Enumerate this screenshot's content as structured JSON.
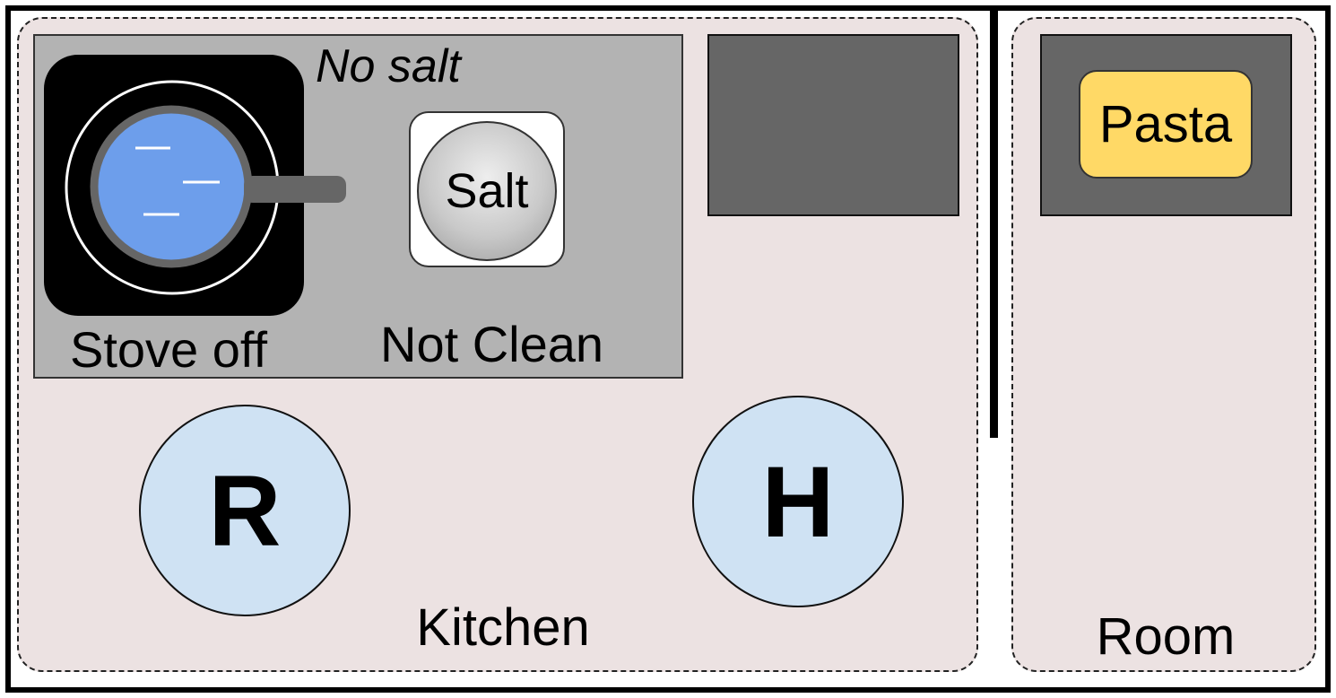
{
  "kitchen": {
    "label": "Kitchen",
    "counter": {
      "stove_status": "Stove off",
      "salt_note": "No salt",
      "salt_label": "Salt",
      "clean_status": "Not Clean"
    }
  },
  "room": {
    "label": "Room",
    "item_label": "Pasta"
  },
  "agents": {
    "robot": "R",
    "human": "H"
  },
  "colors": {
    "zone_fill": "#ece2e2",
    "counter": "#b3b3b3",
    "table": "#666666",
    "water": "#6d9eeb",
    "pasta": "#ffd966",
    "agent": "#cfe2f3"
  }
}
